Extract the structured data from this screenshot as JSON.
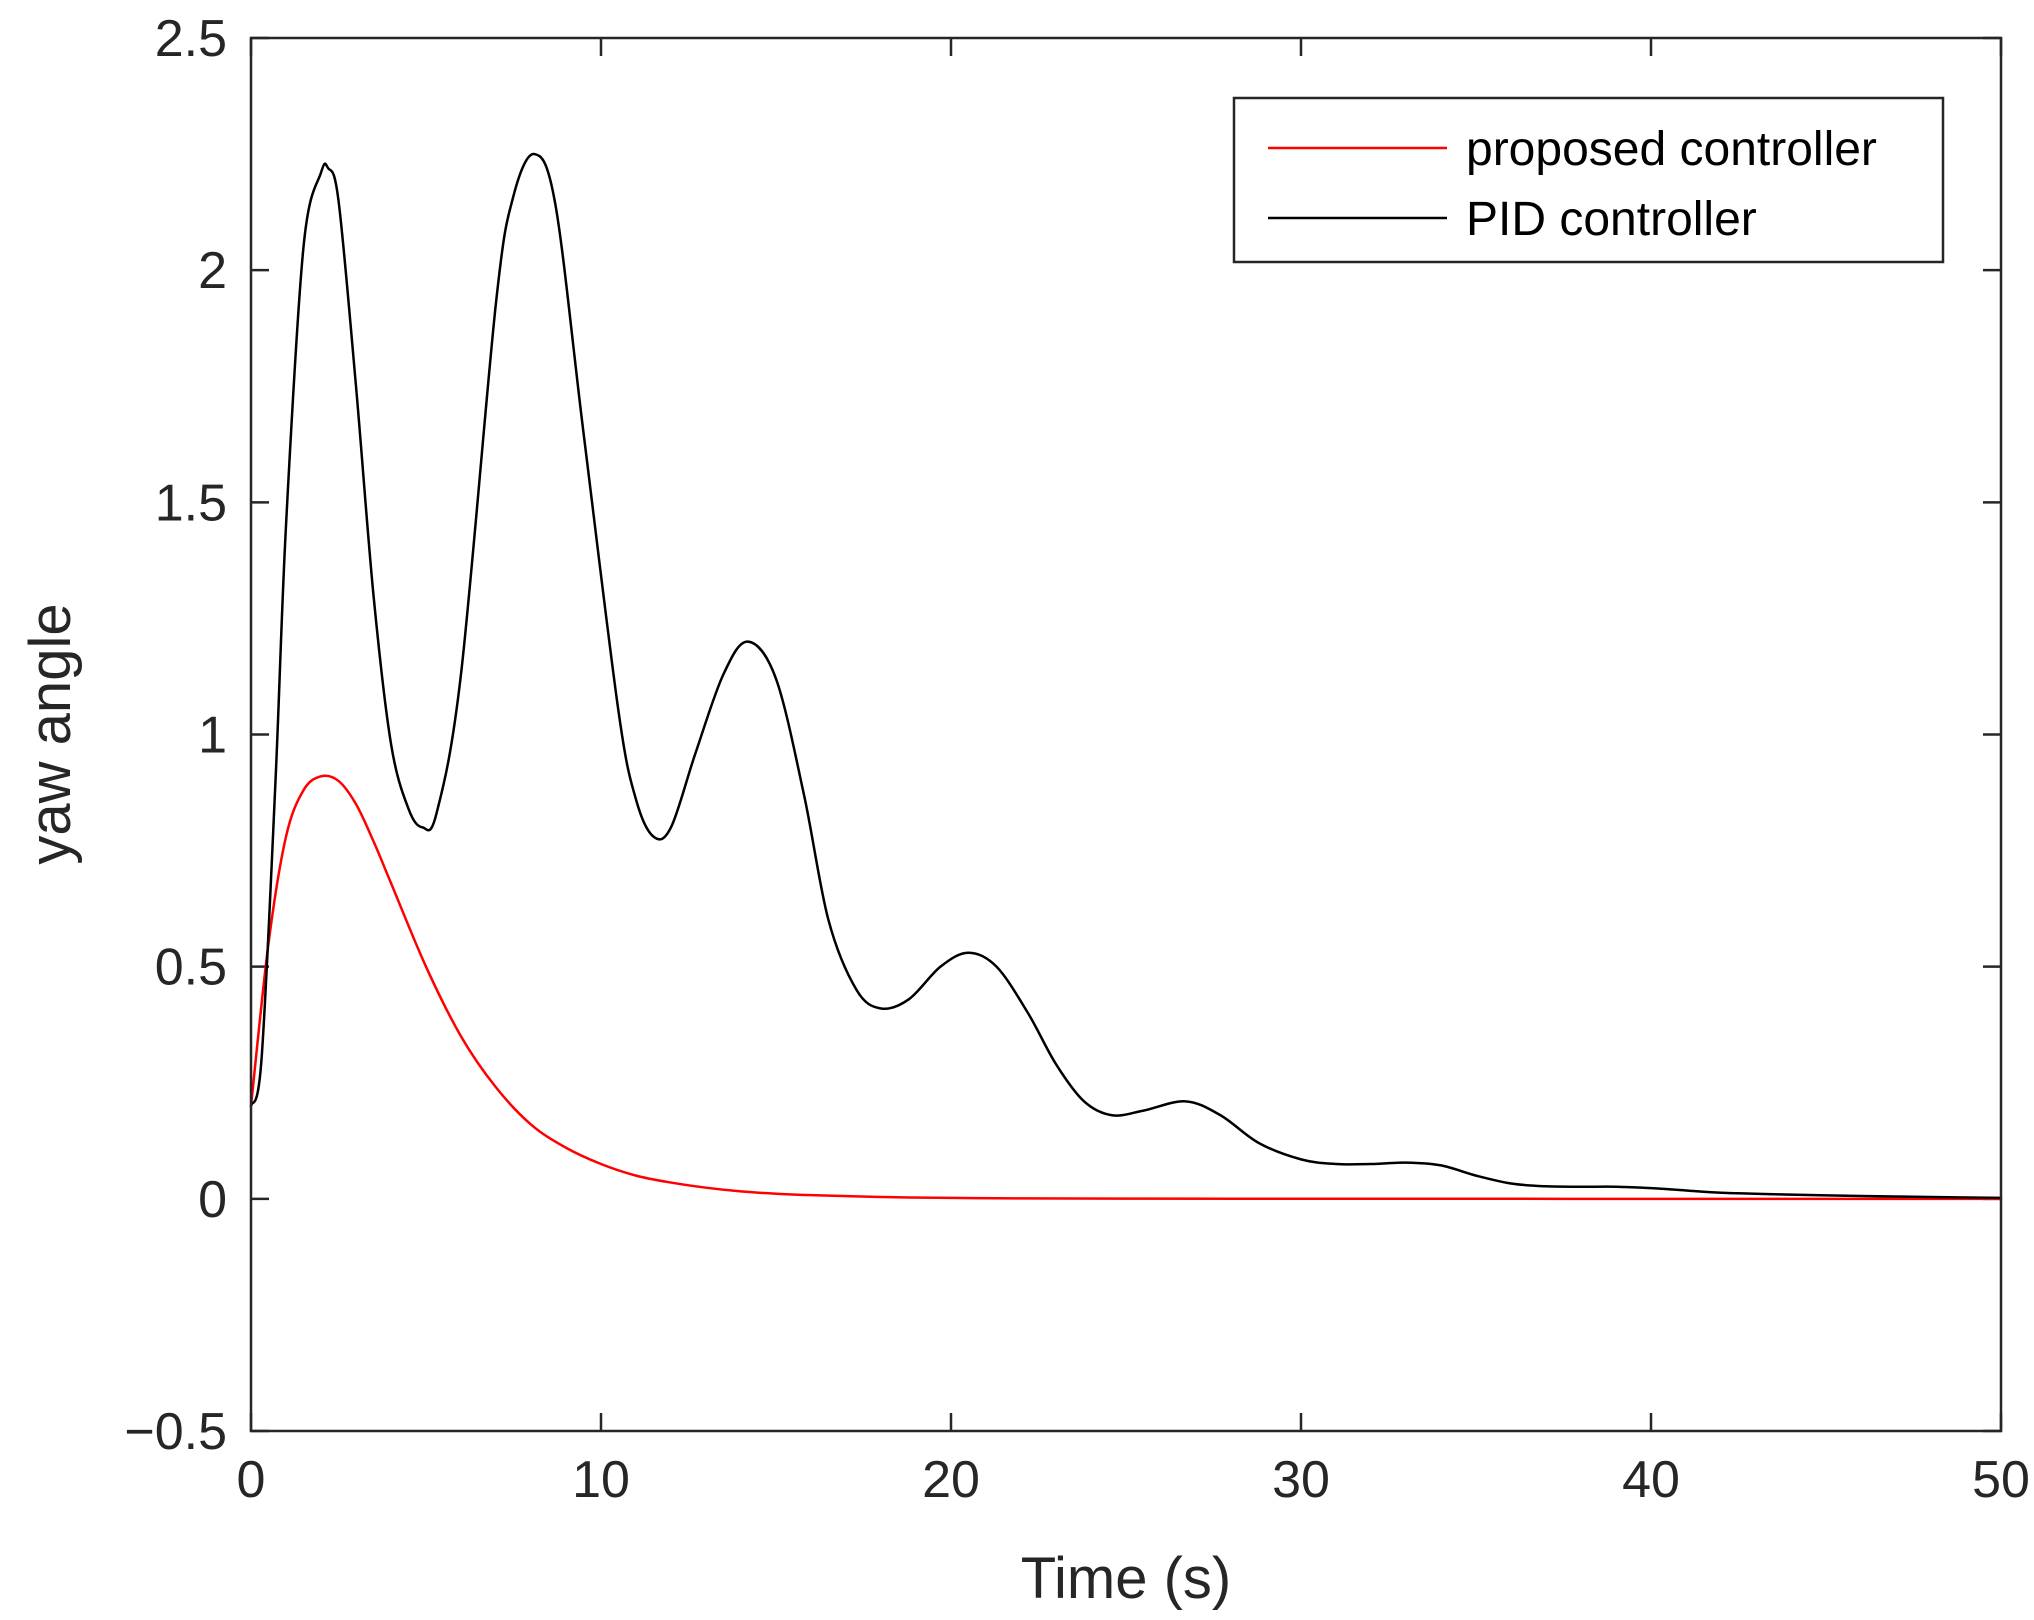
{
  "chart_data": {
    "type": "line",
    "title": "",
    "xlabel": "Time (s)",
    "ylabel": "yaw angle",
    "xlim": [
      0,
      50
    ],
    "ylim": [
      -0.5,
      2.5
    ],
    "xticks": [
      0,
      10,
      20,
      30,
      40,
      50
    ],
    "xtick_labels": [
      "0",
      "10",
      "20",
      "30",
      "40",
      "50"
    ],
    "yticks": [
      -0.5,
      0,
      0.5,
      1,
      1.5,
      2,
      2.5
    ],
    "ytick_labels": [
      "−0.5",
      "0",
      "0.5",
      "1",
      "1.5",
      "2",
      "2.5"
    ],
    "grid": false,
    "legend_position": "top-right",
    "series": [
      {
        "name": "proposed controller",
        "color": "#ff0000",
        "x": [
          0,
          0.5,
          1,
          1.5,
          2,
          2.5,
          3,
          3.5,
          4,
          5,
          6,
          7,
          8,
          9,
          10,
          11,
          12,
          13,
          14,
          15,
          16,
          18,
          20,
          22,
          25,
          30,
          35,
          40,
          45,
          50
        ],
        "y": [
          0.2,
          0.55,
          0.78,
          0.88,
          0.91,
          0.9,
          0.85,
          0.77,
          0.68,
          0.5,
          0.35,
          0.24,
          0.16,
          0.11,
          0.075,
          0.05,
          0.035,
          0.024,
          0.016,
          0.011,
          0.008,
          0.004,
          0.002,
          0.001,
          0.0005,
          0.0002,
          0.0001,
          0,
          0,
          0
        ]
      },
      {
        "name": "PID controller",
        "color": "#000000",
        "x": [
          0,
          0.3,
          0.7,
          1.0,
          1.5,
          2.0,
          2.2,
          2.5,
          3.0,
          3.5,
          4.0,
          4.5,
          4.9,
          5.3,
          6.0,
          7.0,
          7.5,
          8.1,
          8.7,
          9.5,
          10.5,
          11.0,
          11.5,
          12.0,
          12.7,
          13.5,
          14.2,
          15.0,
          15.8,
          16.5,
          17.3,
          18.0,
          18.8,
          19.7,
          20.5,
          21.3,
          22.2,
          23.0,
          23.8,
          24.6,
          25.5,
          26.7,
          27.7,
          28.8,
          30.0,
          31.0,
          32.0,
          33.0,
          34.0,
          35.0,
          36.0,
          37.0,
          38.0,
          39.0,
          40.0,
          41.0,
          42.0,
          44.0,
          46.0,
          48.0,
          50.0
        ],
        "y": [
          0.2,
          0.3,
          0.9,
          1.45,
          2.05,
          2.21,
          2.22,
          2.15,
          1.75,
          1.3,
          0.98,
          0.84,
          0.8,
          0.83,
          1.13,
          1.93,
          2.16,
          2.25,
          2.14,
          1.65,
          1.05,
          0.86,
          0.78,
          0.8,
          0.96,
          1.13,
          1.2,
          1.12,
          0.87,
          0.6,
          0.45,
          0.41,
          0.43,
          0.5,
          0.53,
          0.5,
          0.4,
          0.29,
          0.21,
          0.18,
          0.19,
          0.21,
          0.18,
          0.12,
          0.085,
          0.075,
          0.075,
          0.078,
          0.072,
          0.05,
          0.033,
          0.027,
          0.026,
          0.026,
          0.023,
          0.018,
          0.013,
          0.009,
          0.006,
          0.004,
          0.002
        ]
      }
    ]
  }
}
